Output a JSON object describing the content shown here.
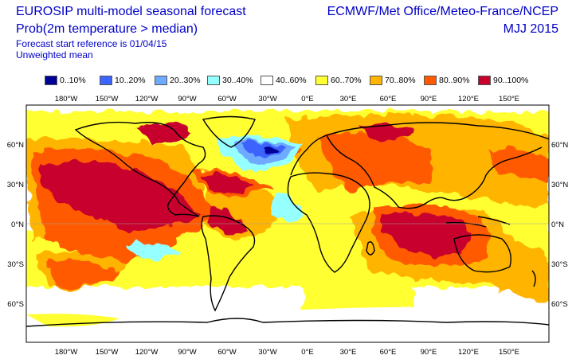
{
  "header": {
    "title_line1": "EUROSIP multi-model seasonal forecast",
    "title_line2": "Prob(2m temperature > median)",
    "title_line3": "Forecast start reference is 01/04/15",
    "title_line4": "Unweighted mean",
    "right_line1": "ECMWF/Met Office/Meteo-France/NCEP",
    "right_line2": "MJJ 2015"
  },
  "legend": [
    {
      "label": "0..10%",
      "color": "#000096"
    },
    {
      "label": "10..20%",
      "color": "#3c64ff"
    },
    {
      "label": "20..30%",
      "color": "#6eaaff"
    },
    {
      "label": "30..40%",
      "color": "#96ffff"
    },
    {
      "label": "40..60%",
      "color": "#ffffff"
    },
    {
      "label": "60..70%",
      "color": "#ffff32"
    },
    {
      "label": "70..80%",
      "color": "#ffb400"
    },
    {
      "label": "80..90%",
      "color": "#ff5a00"
    },
    {
      "label": "90..100%",
      "color": "#c8002d"
    }
  ],
  "map": {
    "lon_labels": [
      "180°W",
      "150°W",
      "120°W",
      "90°W",
      "60°W",
      "30°W",
      "0°E",
      "30°E",
      "60°E",
      "90°E",
      "120°E",
      "150°E"
    ],
    "lat_labels": [
      "60°N",
      "30°N",
      "0°N",
      "30°S",
      "60°S"
    ]
  }
}
